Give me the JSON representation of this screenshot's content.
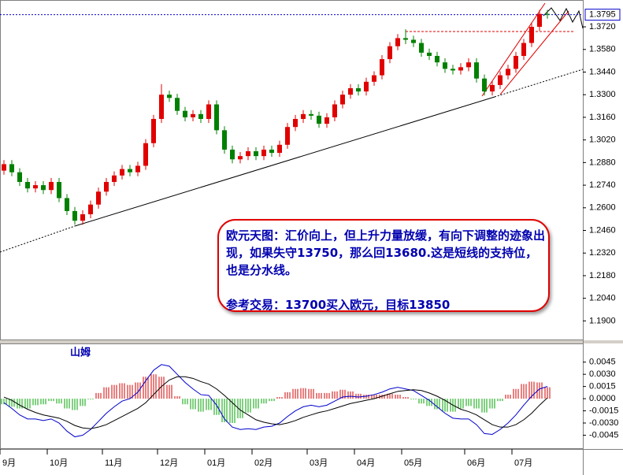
{
  "chart_data": [
    {
      "type": "candlestick",
      "up_color": "#e00000",
      "down_color": "#008000",
      "last_price": 1.3795,
      "ylim": [
        1.178,
        1.3886
      ],
      "yticks": [
        {
          "value": 1.372,
          "label": "1.3720"
        },
        {
          "value": 1.358,
          "label": "1.3580"
        },
        {
          "value": 1.344,
          "label": "1.3440"
        },
        {
          "value": 1.33,
          "label": "1.3300"
        },
        {
          "value": 1.316,
          "label": "1.3160"
        },
        {
          "value": 1.302,
          "label": "1.3020"
        },
        {
          "value": 1.288,
          "label": "1.2880"
        },
        {
          "value": 1.274,
          "label": "1.2740"
        },
        {
          "value": 1.26,
          "label": "1.2600"
        },
        {
          "value": 1.246,
          "label": "1.2460"
        },
        {
          "value": 1.232,
          "label": "1.2320"
        },
        {
          "value": 1.218,
          "label": "1.2180"
        },
        {
          "value": 1.204,
          "label": "1.2040"
        },
        {
          "value": 1.19,
          "label": "1.1900"
        }
      ],
      "categories": [
        "9月",
        null,
        null,
        null,
        null,
        null,
        "10月",
        null,
        null,
        null,
        null,
        null,
        null,
        "11月",
        null,
        null,
        null,
        null,
        null,
        null,
        "12月",
        null,
        null,
        null,
        null,
        null,
        "01月",
        null,
        null,
        null,
        null,
        null,
        "02月",
        null,
        null,
        null,
        null,
        null,
        null,
        "03月",
        null,
        null,
        null,
        null,
        null,
        "04月",
        null,
        null,
        null,
        null,
        null,
        "05月",
        null,
        null,
        null,
        null,
        null,
        null,
        null,
        "06月",
        null,
        null,
        null,
        null,
        null,
        "07月",
        null,
        null,
        null,
        null
      ],
      "open": [
        1.283,
        1.287,
        1.282,
        1.276,
        1.272,
        1.274,
        1.271,
        1.276,
        1.266,
        1.258,
        1.252,
        1.256,
        1.262,
        1.27,
        1.276,
        1.28,
        1.284,
        1.282,
        1.286,
        1.3,
        1.315,
        1.33,
        1.328,
        1.32,
        1.316,
        1.318,
        1.315,
        1.324,
        1.308,
        1.296,
        1.29,
        1.292,
        1.295,
        1.292,
        1.296,
        1.294,
        1.299,
        1.31,
        1.315,
        1.318,
        1.317,
        1.312,
        1.316,
        1.324,
        1.33,
        1.334,
        1.332,
        1.338,
        1.342,
        1.352,
        1.36,
        1.365,
        1.364,
        1.362,
        1.356,
        1.354,
        1.35,
        1.346,
        1.345,
        1.347,
        1.35,
        1.34,
        1.332,
        1.336,
        1.342,
        1.346,
        1.354,
        1.362,
        1.372,
        1.38
      ],
      "high": [
        1.2895,
        1.2895,
        1.2845,
        1.2785,
        1.2765,
        1.2765,
        1.2785,
        1.2785,
        1.2685,
        1.2605,
        1.2585,
        1.2645,
        1.2725,
        1.2785,
        1.2825,
        1.2865,
        1.2865,
        1.2885,
        1.3025,
        1.3175,
        1.3365,
        1.3325,
        1.3305,
        1.3225,
        1.3205,
        1.3205,
        1.3265,
        1.3265,
        1.3105,
        1.2985,
        1.2945,
        1.2975,
        1.2975,
        1.2985,
        1.2985,
        1.3015,
        1.3125,
        1.3175,
        1.3205,
        1.3205,
        1.3195,
        1.3185,
        1.3265,
        1.3325,
        1.3365,
        1.3365,
        1.3405,
        1.3445,
        1.3545,
        1.3625,
        1.3675,
        1.3705,
        1.3665,
        1.3645,
        1.3585,
        1.3565,
        1.3525,
        1.3485,
        1.3495,
        1.3525,
        1.3525,
        1.3425,
        1.3385,
        1.3445,
        1.3485,
        1.3565,
        1.3645,
        1.3745,
        1.3825,
        1.3825
      ],
      "low": [
        1.2805,
        1.2795,
        1.2735,
        1.2695,
        1.2695,
        1.2685,
        1.2685,
        1.2635,
        1.2555,
        1.2495,
        1.2495,
        1.2535,
        1.2595,
        1.2675,
        1.2735,
        1.2775,
        1.2795,
        1.2795,
        1.2835,
        1.2975,
        1.3125,
        1.3255,
        1.3175,
        1.3135,
        1.3135,
        1.3125,
        1.3125,
        1.3055,
        1.2935,
        1.2875,
        1.2875,
        1.2895,
        1.2895,
        1.2895,
        1.2915,
        1.2915,
        1.2965,
        1.3075,
        1.3125,
        1.3145,
        1.3095,
        1.3095,
        1.3135,
        1.3215,
        1.3275,
        1.3295,
        1.3295,
        1.3355,
        1.3395,
        1.3495,
        1.3575,
        1.3615,
        1.3595,
        1.3535,
        1.3515,
        1.3475,
        1.3435,
        1.3425,
        1.3425,
        1.3445,
        1.3375,
        1.3295,
        1.3295,
        1.3335,
        1.3395,
        1.3435,
        1.3515,
        1.3595,
        1.3695,
        1.377
      ],
      "close": [
        1.287,
        1.282,
        1.276,
        1.272,
        1.274,
        1.271,
        1.276,
        1.266,
        1.258,
        1.252,
        1.256,
        1.262,
        1.27,
        1.276,
        1.28,
        1.284,
        1.282,
        1.286,
        1.3,
        1.315,
        1.33,
        1.328,
        1.32,
        1.316,
        1.318,
        1.315,
        1.324,
        1.308,
        1.296,
        1.29,
        1.292,
        1.295,
        1.292,
        1.296,
        1.294,
        1.299,
        1.31,
        1.315,
        1.318,
        1.317,
        1.312,
        1.316,
        1.324,
        1.33,
        1.334,
        1.332,
        1.338,
        1.342,
        1.352,
        1.36,
        1.365,
        1.364,
        1.362,
        1.356,
        1.354,
        1.35,
        1.346,
        1.345,
        1.347,
        1.35,
        1.34,
        1.332,
        1.336,
        1.342,
        1.346,
        1.354,
        1.362,
        1.372,
        1.38,
        1.3795
      ],
      "annotations": [
        "欧元天图：汇价向上，但上升力量放缓，有向下调整的迹象出现，如果失守13750，那么回13680.这是短线的支持位，也是分水线。",
        "参考交易：13700买入欧元，目标13850"
      ]
    },
    {
      "type": "macd",
      "title": "山姆",
      "up_color": "#d00000",
      "down_color": "#00a000",
      "ylim": [
        -0.0062,
        0.0068
      ],
      "yticks": [
        {
          "value": 0.0045,
          "label": "0.0045"
        },
        {
          "value": 0.003,
          "label": "0.0030"
        },
        {
          "value": 0.0015,
          "label": "0.0015"
        },
        {
          "value": 0,
          "label": "0.0000"
        },
        {
          "value": -0.0015,
          "label": "-0.0015"
        },
        {
          "value": -0.003,
          "label": "-0.0030"
        },
        {
          "value": -0.0045,
          "label": "-0.0045"
        }
      ],
      "histogram": [
        -0.0007,
        -0.001,
        -0.0012,
        -0.0012,
        -0.0008,
        -0.0007,
        -0.0003,
        -0.0006,
        -0.0012,
        -0.0014,
        -0.0009,
        -0.0001,
        0.0007,
        0.0014,
        0.0017,
        0.0019,
        0.0017,
        0.002,
        0.0027,
        0.003,
        0.0027,
        0.0017,
        0.0003,
        -0.0007,
        -0.0013,
        -0.0016,
        -0.0014,
        -0.002,
        -0.0029,
        -0.003,
        -0.0024,
        -0.0017,
        -0.0012,
        -0.0006,
        -0.0003,
        0.0002,
        0.0008,
        0.0012,
        0.0013,
        0.0012,
        0.0007,
        0.0007,
        0.0009,
        0.0011,
        0.0009,
        0.0006,
        0.0005,
        0.0005,
        0.0005,
        0.0006,
        0.0005,
        0.0002,
        -0.0001,
        -0.0006,
        -0.0009,
        -0.0013,
        -0.0016,
        -0.0016,
        -0.0012,
        -0.0009,
        -0.0012,
        -0.0017,
        -0.0012,
        -0.0003,
        0.0005,
        0.0012,
        0.0018,
        0.0021,
        0.002,
        0.0014
      ],
      "series": [
        {
          "color": "#0000cc",
          "values": [
            -0.0005,
            -0.0012,
            -0.002,
            -0.0025,
            -0.0025,
            -0.0027,
            -0.0025,
            -0.003,
            -0.004,
            -0.0047,
            -0.0045,
            -0.0038,
            -0.0028,
            -0.0018,
            -0.001,
            -0.0003,
            0.0,
            0.0008,
            0.0022,
            0.0035,
            0.0042,
            0.004,
            0.003,
            0.002,
            0.0012,
            0.0005,
            0.0004,
            -0.0008,
            -0.0025,
            -0.0035,
            -0.0038,
            -0.0037,
            -0.0038,
            -0.0035,
            -0.0034,
            -0.003,
            -0.0022,
            -0.0015,
            -0.001,
            -0.0008,
            -0.001,
            -0.0008,
            -0.0003,
            0.0002,
            0.0003,
            0.0002,
            0.0003,
            0.0005,
            0.0008,
            0.0012,
            0.0014,
            0.0012,
            0.001,
            0.0004,
            -0.0002,
            -0.001,
            -0.0018,
            -0.0024,
            -0.0025,
            -0.0025,
            -0.0032,
            -0.0043,
            -0.0044,
            -0.0038,
            -0.003,
            -0.002,
            -0.0008,
            0.0003,
            0.0012,
            0.0015
          ]
        },
        {
          "color": "#000000",
          "values": [
            0.0002,
            -0.0002,
            -0.0008,
            -0.0013,
            -0.0017,
            -0.002,
            -0.0022,
            -0.0024,
            -0.0028,
            -0.0033,
            -0.0036,
            -0.0037,
            -0.0035,
            -0.0032,
            -0.0027,
            -0.0022,
            -0.0017,
            -0.0012,
            -0.0005,
            0.0005,
            0.0015,
            0.0023,
            0.0027,
            0.0027,
            0.0025,
            0.0021,
            0.0018,
            0.0012,
            0.0004,
            -0.0005,
            -0.0014,
            -0.002,
            -0.0026,
            -0.0029,
            -0.0031,
            -0.0032,
            -0.003,
            -0.0027,
            -0.0023,
            -0.002,
            -0.0017,
            -0.0015,
            -0.0012,
            -0.0009,
            -0.0006,
            -0.0004,
            -0.0002,
            0.0,
            0.0003,
            0.0006,
            0.0009,
            0.001,
            0.0011,
            0.001,
            0.0007,
            0.0003,
            -0.0002,
            -0.0008,
            -0.0013,
            -0.0016,
            -0.002,
            -0.0026,
            -0.0032,
            -0.0035,
            -0.0035,
            -0.0032,
            -0.0026,
            -0.0018,
            -0.0008,
            0.0001
          ]
        }
      ]
    }
  ]
}
